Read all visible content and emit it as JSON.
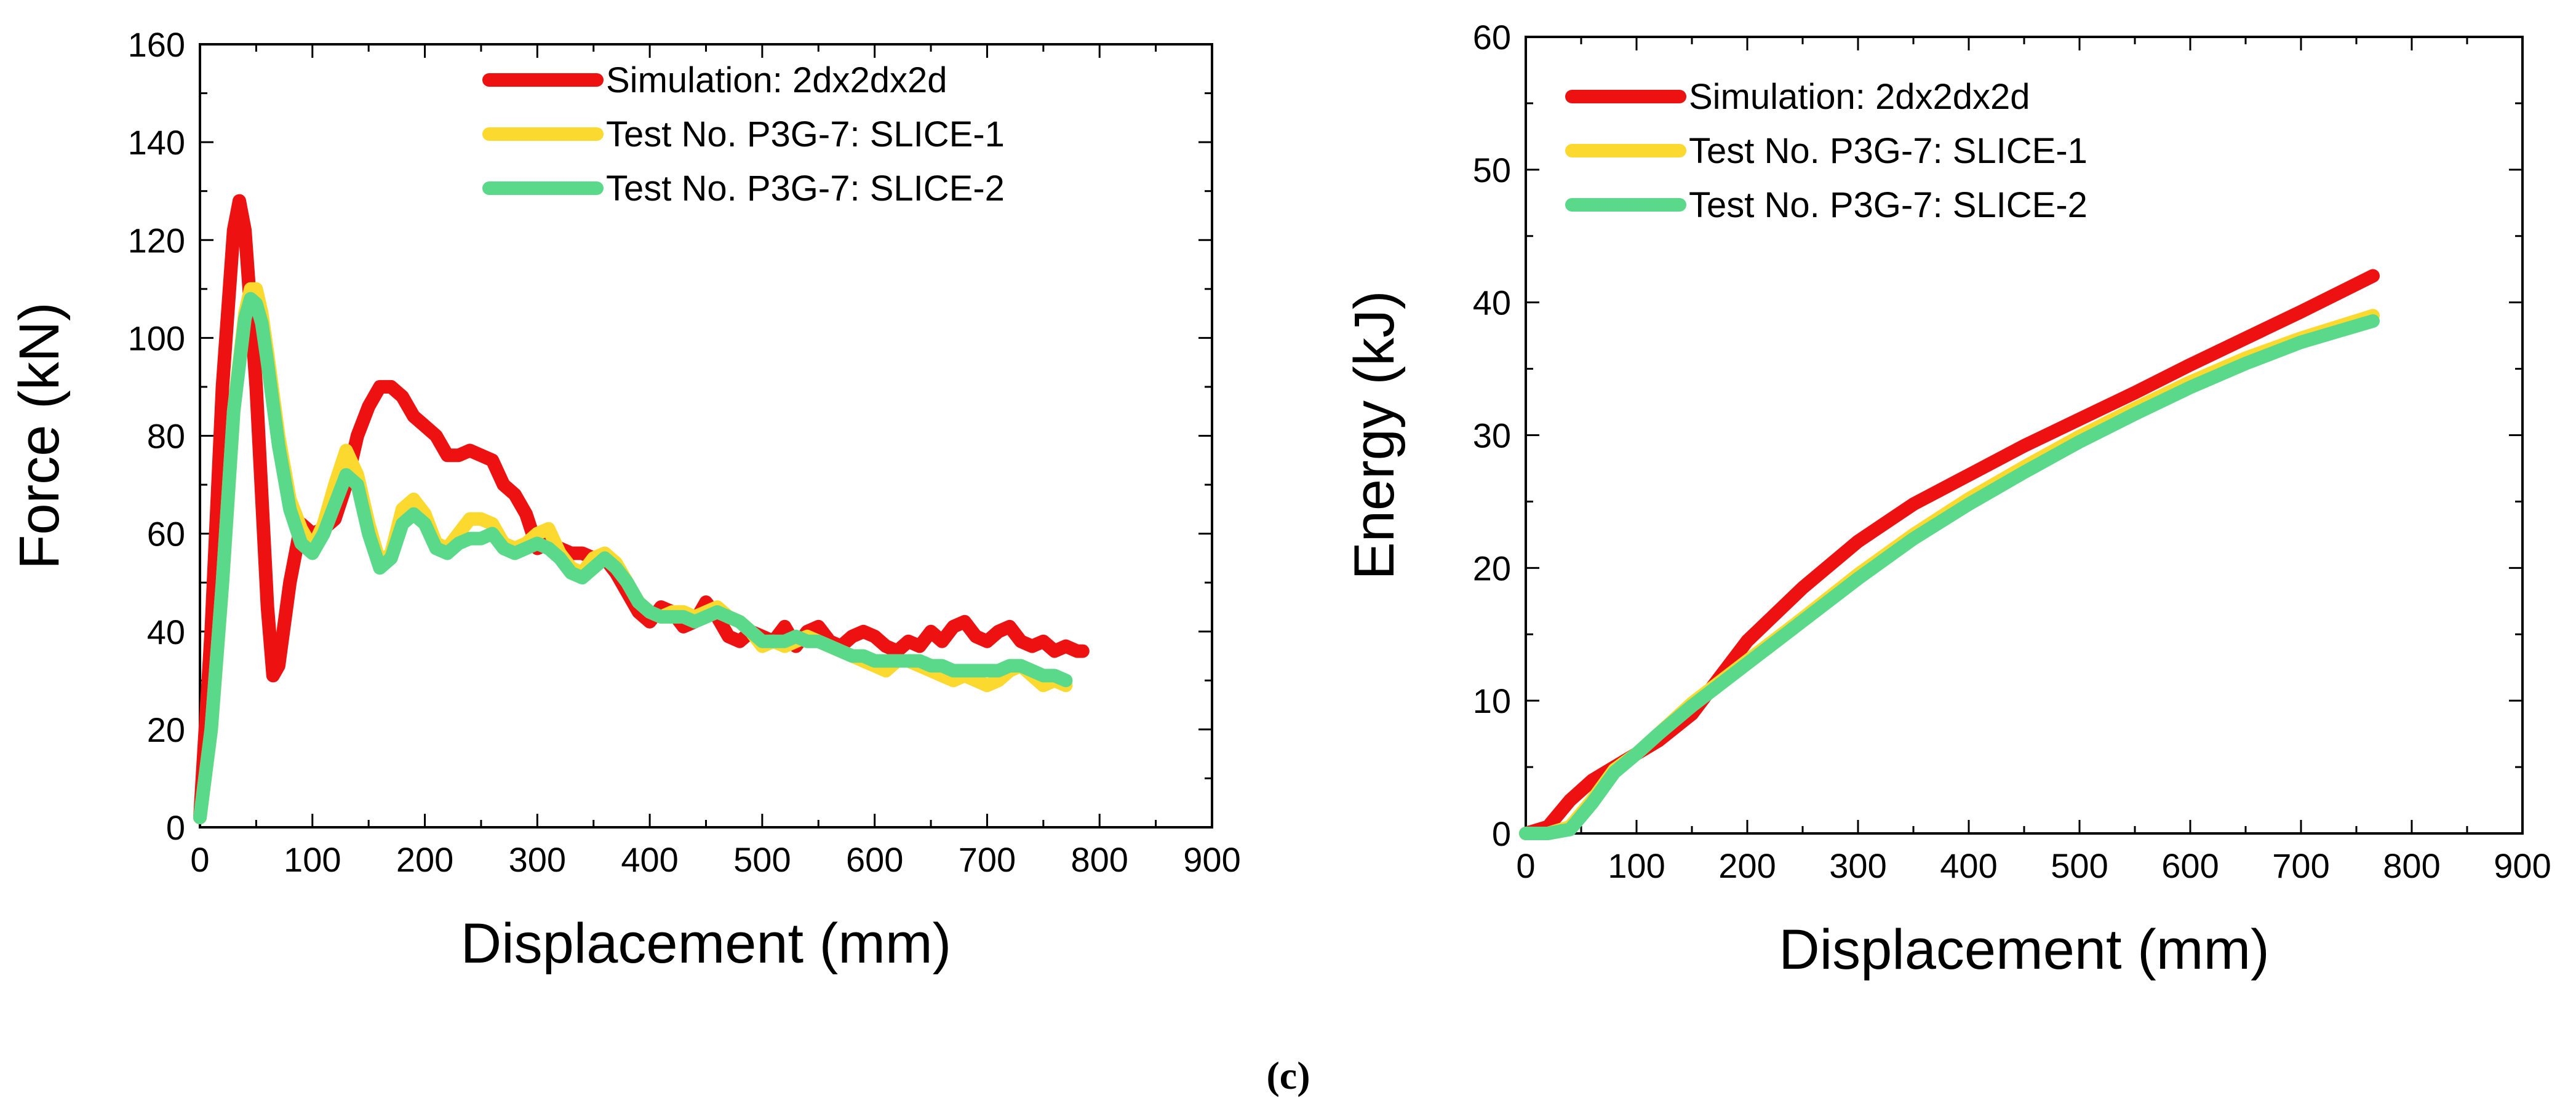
{
  "caption": "(c)",
  "chart_data": [
    {
      "type": "line",
      "xlabel": "Displacement (mm)",
      "ylabel": "Force (kN)",
      "xlim": [
        0,
        900
      ],
      "ylim": [
        0,
        160
      ],
      "xticks": [
        0,
        100,
        200,
        300,
        400,
        500,
        600,
        700,
        800,
        900
      ],
      "yticks": [
        0,
        20,
        40,
        60,
        80,
        100,
        120,
        140,
        160
      ],
      "xtick_labels": [
        "0",
        "100",
        "200",
        "300",
        "400",
        "500",
        "600",
        "700",
        "800",
        "900"
      ],
      "ytick_labels": [
        "0",
        "20",
        "40",
        "60",
        "80",
        "100",
        "120",
        "140",
        "160"
      ],
      "legend_position": "top-right",
      "series": [
        {
          "name": "Simulation: 2dx2dx2d",
          "color": "#ee1111",
          "x": [
            0,
            10,
            20,
            30,
            35,
            40,
            50,
            60,
            65,
            70,
            80,
            90,
            100,
            110,
            120,
            130,
            140,
            150,
            160,
            170,
            180,
            190,
            200,
            210,
            220,
            230,
            240,
            250,
            260,
            270,
            280,
            290,
            300,
            310,
            320,
            330,
            340,
            350,
            360,
            370,
            380,
            390,
            400,
            410,
            420,
            430,
            440,
            450,
            460,
            470,
            480,
            490,
            500,
            510,
            520,
            530,
            540,
            550,
            560,
            570,
            580,
            590,
            600,
            610,
            620,
            630,
            640,
            650,
            660,
            670,
            680,
            690,
            700,
            710,
            720,
            730,
            740,
            750,
            760,
            770,
            780,
            785
          ],
          "values": [
            2,
            40,
            90,
            122,
            128,
            122,
            90,
            45,
            31,
            33,
            50,
            62,
            60,
            61,
            63,
            70,
            80,
            86,
            90,
            90,
            88,
            84,
            82,
            80,
            76,
            76,
            77,
            76,
            75,
            70,
            68,
            64,
            57,
            58,
            57,
            56,
            56,
            55,
            55,
            52,
            48,
            44,
            42,
            45,
            44,
            41,
            42,
            46,
            43,
            39,
            38,
            40,
            39,
            38,
            41,
            37,
            40,
            41,
            38,
            37,
            39,
            40,
            39,
            37,
            36,
            38,
            37,
            40,
            38,
            41,
            42,
            39,
            38,
            40,
            41,
            38,
            37,
            38,
            36,
            37,
            36,
            36
          ]
        },
        {
          "name": "Test No. P3G-7: SLICE-1",
          "color": "#fbd92e",
          "x": [
            0,
            10,
            20,
            30,
            40,
            45,
            50,
            55,
            60,
            70,
            80,
            90,
            100,
            110,
            120,
            130,
            140,
            150,
            160,
            170,
            180,
            190,
            200,
            210,
            220,
            230,
            240,
            250,
            260,
            270,
            280,
            290,
            300,
            310,
            320,
            330,
            340,
            350,
            360,
            370,
            380,
            390,
            400,
            410,
            420,
            430,
            440,
            450,
            460,
            470,
            480,
            490,
            500,
            510,
            520,
            530,
            540,
            550,
            560,
            570,
            580,
            590,
            600,
            610,
            620,
            630,
            640,
            650,
            660,
            670,
            680,
            690,
            700,
            710,
            720,
            730,
            740,
            750,
            760,
            770
          ],
          "values": [
            2,
            20,
            50,
            85,
            105,
            110,
            110,
            105,
            97,
            80,
            67,
            61,
            57,
            62,
            70,
            77,
            72,
            62,
            54,
            56,
            65,
            67,
            64,
            58,
            57,
            60,
            63,
            63,
            62,
            58,
            57,
            58,
            60,
            61,
            56,
            53,
            52,
            55,
            56,
            54,
            50,
            46,
            44,
            43,
            44,
            44,
            43,
            44,
            45,
            43,
            42,
            40,
            37,
            38,
            37,
            38,
            39,
            38,
            37,
            36,
            35,
            34,
            33,
            32,
            34,
            34,
            33,
            32,
            31,
            30,
            31,
            30,
            29,
            30,
            32,
            33,
            31,
            29,
            30,
            29
          ]
        },
        {
          "name": "Test No. P3G-7: SLICE-2",
          "color": "#5bd98a",
          "x": [
            0,
            10,
            20,
            30,
            40,
            45,
            50,
            55,
            60,
            70,
            80,
            90,
            100,
            110,
            120,
            130,
            140,
            150,
            160,
            170,
            180,
            190,
            200,
            210,
            220,
            230,
            240,
            250,
            260,
            270,
            280,
            290,
            300,
            310,
            320,
            330,
            340,
            350,
            360,
            370,
            380,
            390,
            400,
            410,
            420,
            430,
            440,
            450,
            460,
            470,
            480,
            490,
            500,
            510,
            520,
            530,
            540,
            550,
            560,
            570,
            580,
            590,
            600,
            610,
            620,
            630,
            640,
            650,
            660,
            670,
            680,
            690,
            700,
            710,
            720,
            730,
            740,
            750,
            760,
            770
          ],
          "values": [
            2,
            20,
            50,
            85,
            104,
            108,
            107,
            103,
            95,
            78,
            65,
            58,
            56,
            60,
            66,
            72,
            70,
            60,
            53,
            55,
            62,
            64,
            62,
            57,
            56,
            58,
            59,
            59,
            60,
            57,
            56,
            57,
            58,
            57,
            55,
            52,
            51,
            53,
            55,
            53,
            50,
            46,
            44,
            43,
            43,
            43,
            42,
            43,
            44,
            43,
            42,
            40,
            38,
            38,
            38,
            39,
            38,
            38,
            37,
            36,
            35,
            35,
            34,
            34,
            34,
            34,
            34,
            33,
            33,
            32,
            32,
            32,
            32,
            32,
            33,
            33,
            32,
            31,
            31,
            30
          ]
        }
      ]
    },
    {
      "type": "line",
      "xlabel": "Displacement (mm)",
      "ylabel": "Energy (kJ)",
      "xlim": [
        0,
        900
      ],
      "ylim": [
        0,
        60
      ],
      "xticks": [
        0,
        100,
        200,
        300,
        400,
        500,
        600,
        700,
        800,
        900
      ],
      "yticks": [
        0,
        10,
        20,
        30,
        40,
        50,
        60
      ],
      "xtick_labels": [
        "0",
        "100",
        "200",
        "300",
        "400",
        "500",
        "600",
        "700",
        "800",
        "900"
      ],
      "ytick_labels": [
        "0",
        "10",
        "20",
        "30",
        "40",
        "50",
        "60"
      ],
      "legend_position": "top-left",
      "series": [
        {
          "name": "Simulation: 2dx2dx2d",
          "color": "#ee1111",
          "x": [
            0,
            20,
            40,
            60,
            80,
            100,
            120,
            150,
            200,
            250,
            300,
            350,
            400,
            450,
            500,
            550,
            600,
            650,
            700,
            765
          ],
          "values": [
            0,
            0.5,
            2.5,
            4,
            5,
            6,
            7,
            9,
            14.5,
            18.5,
            22,
            24.8,
            27,
            29.2,
            31.2,
            33.2,
            35.3,
            37.3,
            39.3,
            42
          ]
        },
        {
          "name": "Test No. P3G-7: SLICE-1",
          "color": "#fbd92e",
          "x": [
            0,
            20,
            40,
            60,
            80,
            100,
            120,
            150,
            200,
            250,
            300,
            350,
            400,
            450,
            500,
            550,
            600,
            650,
            700,
            765
          ],
          "values": [
            0,
            0,
            0.5,
            2.5,
            4.8,
            6,
            7.5,
            9.8,
            13,
            16.2,
            19.5,
            22.5,
            25.2,
            27.6,
            29.9,
            32,
            34,
            35.8,
            37.3,
            39
          ]
        },
        {
          "name": "Test No. P3G-7: SLICE-2",
          "color": "#5bd98a",
          "x": [
            0,
            20,
            40,
            60,
            80,
            100,
            120,
            150,
            200,
            250,
            300,
            350,
            400,
            450,
            500,
            550,
            600,
            650,
            700,
            765
          ],
          "values": [
            0,
            0,
            0.3,
            2.3,
            4.6,
            6,
            7.5,
            9.6,
            12.8,
            16,
            19.2,
            22.2,
            24.8,
            27.2,
            29.5,
            31.6,
            33.6,
            35.4,
            37,
            38.6
          ]
        }
      ]
    }
  ]
}
